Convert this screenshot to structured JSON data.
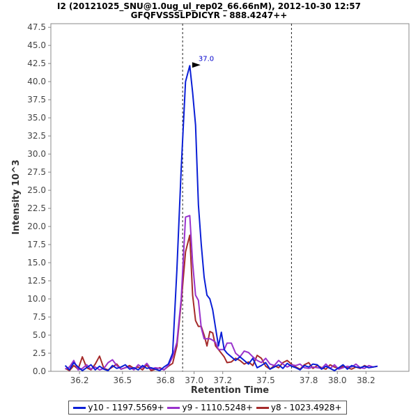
{
  "chart_data": {
    "type": "line",
    "title": "I2 (20121025_SNU@1.0ug_ul_rep02_66.66nM), 2012-10-30 12:57",
    "subtitle": "GFQFVSSSLPDICYR - 888.4247++",
    "xlabel": "Retention Time",
    "ylabel": "Intensity 10^3",
    "xlim": [
      36.0,
      38.5
    ],
    "ylim": [
      0,
      48.0
    ],
    "x_ticks": [
      36.2,
      36.5,
      36.8,
      37.0,
      37.2,
      37.5,
      37.8,
      38.0,
      38.2
    ],
    "y_ticks": [
      0.0,
      2.5,
      5.0,
      7.5,
      10.0,
      12.5,
      15.0,
      17.5,
      20.0,
      22.5,
      25.0,
      27.5,
      30.0,
      32.5,
      35.0,
      37.5,
      40.0,
      42.5,
      45.0,
      47.5
    ],
    "vlines": [
      36.92,
      37.68
    ],
    "peak_annotation": {
      "label": "37.0",
      "x": 37.05,
      "y": 42.2,
      "color": "#0000cc"
    },
    "series": [
      {
        "name": "y10 - 1197.5569+",
        "color": "#0a1ed6",
        "x": [
          36.1,
          36.13,
          36.16,
          36.19,
          36.22,
          36.25,
          36.28,
          36.31,
          36.34,
          36.37,
          36.4,
          36.43,
          36.46,
          36.49,
          36.52,
          36.55,
          36.58,
          36.61,
          36.64,
          36.67,
          36.7,
          36.73,
          36.76,
          36.79,
          36.82,
          36.85,
          36.88,
          36.91,
          36.94,
          36.97,
          36.99,
          37.01,
          37.03,
          37.05,
          37.07,
          37.09,
          37.11,
          37.13,
          37.15,
          37.17,
          37.19,
          37.21,
          37.23,
          37.26,
          37.29,
          37.32,
          37.35,
          37.38,
          37.41,
          37.44,
          37.47,
          37.5,
          37.53,
          37.56,
          37.59,
          37.62,
          37.65,
          37.68,
          37.71,
          37.74,
          37.77,
          37.8,
          37.83,
          37.86,
          37.89,
          37.92,
          37.95,
          37.98,
          38.01,
          38.04,
          38.07,
          38.1,
          38.13,
          38.16,
          38.19,
          38.22,
          38.25,
          38.28
        ],
        "values": [
          0.8,
          0.2,
          1.2,
          0.6,
          0.1,
          0.5,
          0.9,
          0.2,
          0.7,
          0.3,
          0.1,
          0.8,
          0.4,
          0.6,
          0.9,
          0.3,
          0.5,
          0.2,
          0.8,
          0.4,
          0.5,
          0.3,
          0.1,
          0.6,
          1.0,
          2.5,
          14.0,
          28.0,
          40.0,
          42.2,
          38.5,
          34.0,
          23.0,
          17.5,
          13.0,
          10.5,
          10.0,
          8.5,
          6.0,
          3.5,
          5.4,
          3.0,
          2.5,
          2.0,
          1.5,
          2.0,
          1.5,
          1.0,
          1.8,
          0.5,
          0.8,
          1.2,
          0.3,
          0.6,
          0.9,
          0.4,
          1.1,
          0.7,
          0.5,
          0.2,
          0.8,
          0.6,
          1.0,
          0.9,
          0.3,
          0.7,
          0.4,
          0.1,
          0.5,
          0.9,
          0.3,
          0.8,
          0.6,
          0.5,
          0.7,
          0.5,
          0.6,
          0.7
        ]
      },
      {
        "name": "y9 - 1110.5248+",
        "color": "#9932cc",
        "x": [
          36.1,
          36.13,
          36.16,
          36.19,
          36.22,
          36.25,
          36.28,
          36.31,
          36.34,
          36.37,
          36.4,
          36.43,
          36.46,
          36.49,
          36.52,
          36.55,
          36.58,
          36.61,
          36.64,
          36.67,
          36.7,
          36.73,
          36.76,
          36.79,
          36.82,
          36.85,
          36.88,
          36.91,
          36.94,
          36.97,
          36.99,
          37.01,
          37.03,
          37.05,
          37.07,
          37.09,
          37.11,
          37.13,
          37.15,
          37.17,
          37.19,
          37.21,
          37.23,
          37.26,
          37.29,
          37.32,
          37.35,
          37.38,
          37.41,
          37.44,
          37.47,
          37.5,
          37.53,
          37.56,
          37.59,
          37.62,
          37.65,
          37.68,
          37.71,
          37.74,
          37.77,
          37.8,
          37.83,
          37.86,
          37.89,
          37.92,
          37.95,
          37.98,
          38.01,
          38.04,
          38.07,
          38.1,
          38.13,
          38.16,
          38.19,
          38.22,
          38.25,
          38.28
        ],
        "values": [
          0.3,
          0.6,
          1.5,
          0.2,
          0.4,
          0.9,
          0.3,
          0.6,
          0.2,
          0.4,
          1.2,
          1.6,
          0.8,
          0.3,
          0.5,
          0.6,
          0.2,
          0.9,
          0.5,
          1.1,
          0.3,
          0.5,
          0.4,
          0.2,
          0.8,
          2.0,
          4.0,
          10.0,
          21.3,
          21.5,
          15.0,
          10.5,
          9.8,
          6.0,
          4.5,
          4.5,
          4.5,
          4.3,
          4.0,
          3.0,
          3.0,
          3.0,
          3.9,
          3.9,
          2.5,
          2.0,
          2.8,
          2.6,
          2.0,
          1.5,
          1.2,
          1.8,
          1.0,
          0.8,
          1.5,
          1.0,
          0.6,
          0.9,
          0.8,
          1.0,
          0.5,
          0.4,
          0.6,
          0.5,
          0.4,
          1.0,
          0.4,
          0.9,
          0.3,
          0.5,
          0.7,
          0.6,
          1.0,
          0.5,
          0.4,
          0.8,
          0.6,
          0.7
        ]
      },
      {
        "name": "y8 - 1023.4928+",
        "color": "#a52a2a",
        "x": [
          36.1,
          36.13,
          36.16,
          36.19,
          36.22,
          36.25,
          36.28,
          36.31,
          36.34,
          36.37,
          36.4,
          36.43,
          36.46,
          36.49,
          36.52,
          36.55,
          36.58,
          36.61,
          36.64,
          36.67,
          36.7,
          36.73,
          36.76,
          36.79,
          36.82,
          36.85,
          36.88,
          36.91,
          36.94,
          36.97,
          36.99,
          37.01,
          37.03,
          37.05,
          37.07,
          37.09,
          37.11,
          37.13,
          37.15,
          37.17,
          37.19,
          37.21,
          37.23,
          37.26,
          37.29,
          37.32,
          37.35,
          37.38,
          37.41,
          37.44,
          37.47,
          37.5,
          37.53,
          37.56,
          37.59,
          37.62,
          37.65,
          37.68,
          37.71,
          37.74,
          37.77,
          37.8,
          37.83,
          37.86,
          37.89,
          37.92,
          37.95,
          37.98,
          38.01,
          38.04,
          38.07,
          38.1,
          38.13,
          38.16,
          38.19,
          38.22,
          38.25,
          38.28
        ],
        "values": [
          0.4,
          0.1,
          0.8,
          0.3,
          2.0,
          0.5,
          0.2,
          1.0,
          2.1,
          0.4,
          0.2,
          0.6,
          1.0,
          0.3,
          0.5,
          0.8,
          0.4,
          0.6,
          0.2,
          0.9,
          0.1,
          0.3,
          0.5,
          0.2,
          0.7,
          1.1,
          3.5,
          9.5,
          16.5,
          18.8,
          10.5,
          7.0,
          6.2,
          6.2,
          5.0,
          3.5,
          5.5,
          5.3,
          3.5,
          3.0,
          2.5,
          2.0,
          1.2,
          1.3,
          1.8,
          1.5,
          1.0,
          1.3,
          0.8,
          2.2,
          1.8,
          0.7,
          0.3,
          0.8,
          0.5,
          1.2,
          1.5,
          1.0,
          0.6,
          0.3,
          0.9,
          1.2,
          0.4,
          0.8,
          0.5,
          0.3,
          0.9,
          0.6,
          0.4,
          0.7,
          0.5,
          0.3,
          0.6,
          0.4,
          0.8,
          0.5,
          0.6,
          0.7
        ]
      }
    ]
  }
}
